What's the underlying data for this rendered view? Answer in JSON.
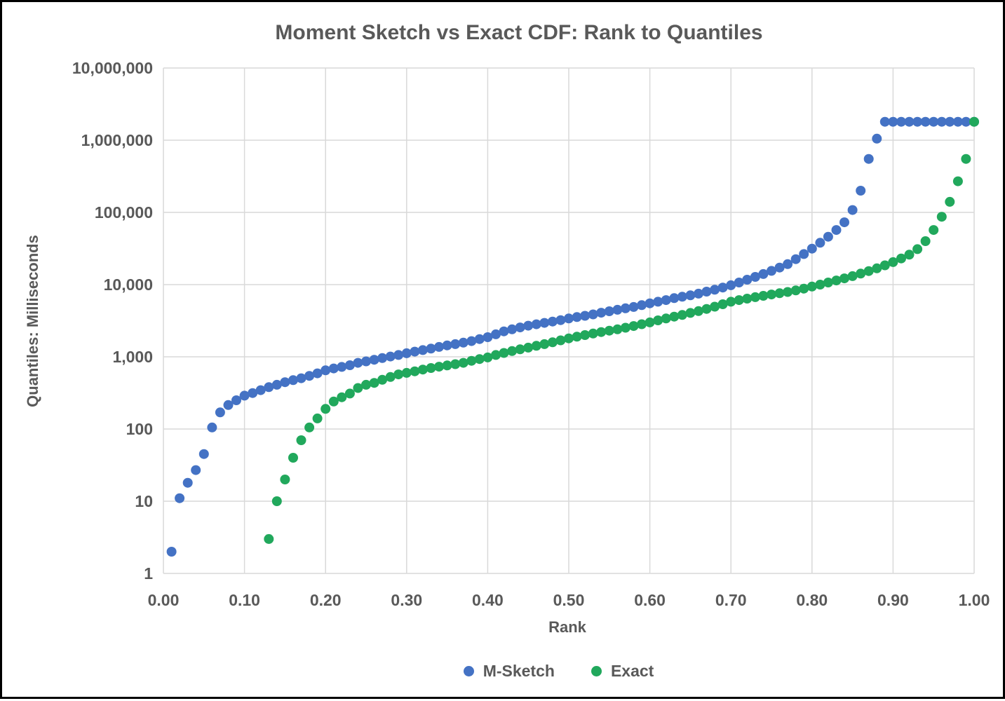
{
  "frame": {
    "border_color": "#000000",
    "background_color": "#FFFFFF"
  },
  "text_color": "#595959",
  "gridline_color": "#D9D9D9",
  "chart_data": {
    "type": "scatter",
    "title": "Moment Sketch vs Exact CDF: Rank to Quantiles",
    "xlabel": "Rank",
    "ylabel": "Quantiles: Milliseconds",
    "grid": true,
    "legend_position": "bottom",
    "x_axis": {
      "min": 0.0,
      "max": 1.0,
      "tick_step": 0.1,
      "tick_labels": [
        "0.00",
        "0.10",
        "0.20",
        "0.30",
        "0.40",
        "0.50",
        "0.60",
        "0.70",
        "0.80",
        "0.90",
        "1.00"
      ]
    },
    "y_axis": {
      "scale": "log10",
      "min": 1,
      "max": 10000000,
      "tick_order": "bottom-to-top",
      "tick_labels": [
        "1",
        "10",
        "100",
        "1,000",
        "10,000",
        "100,000",
        "1,000,000",
        "10,000,000"
      ]
    },
    "series": [
      {
        "name": "M-Sketch",
        "color": "#4472C4",
        "marker_radius": 7,
        "x": [
          0.01,
          0.02,
          0.03,
          0.04,
          0.05,
          0.06,
          0.07,
          0.08,
          0.09,
          0.1,
          0.11,
          0.12,
          0.13,
          0.14,
          0.15,
          0.16,
          0.17,
          0.18,
          0.19,
          0.2,
          0.21,
          0.22,
          0.23,
          0.24,
          0.25,
          0.26,
          0.27,
          0.28,
          0.29,
          0.3,
          0.31,
          0.32,
          0.33,
          0.34,
          0.35,
          0.36,
          0.37,
          0.38,
          0.39,
          0.4,
          0.41,
          0.42,
          0.43,
          0.44,
          0.45,
          0.46,
          0.47,
          0.48,
          0.49,
          0.5,
          0.51,
          0.52,
          0.53,
          0.54,
          0.55,
          0.56,
          0.57,
          0.58,
          0.59,
          0.6,
          0.61,
          0.62,
          0.63,
          0.64,
          0.65,
          0.66,
          0.67,
          0.68,
          0.69,
          0.7,
          0.71,
          0.72,
          0.73,
          0.74,
          0.75,
          0.76,
          0.77,
          0.78,
          0.79,
          0.8,
          0.81,
          0.82,
          0.83,
          0.84,
          0.85,
          0.86,
          0.87,
          0.88,
          0.89,
          0.9,
          0.91,
          0.92,
          0.93,
          0.94,
          0.95,
          0.96,
          0.97,
          0.98,
          0.99,
          1.0
        ],
        "y": [
          2,
          11,
          18,
          27,
          45,
          105,
          170,
          215,
          250,
          290,
          315,
          345,
          380,
          410,
          445,
          475,
          505,
          545,
          590,
          650,
          690,
          725,
          765,
          825,
          865,
          910,
          960,
          1010,
          1060,
          1120,
          1180,
          1240,
          1300,
          1370,
          1440,
          1500,
          1570,
          1650,
          1760,
          1870,
          2050,
          2250,
          2400,
          2550,
          2700,
          2820,
          2950,
          3080,
          3220,
          3400,
          3550,
          3700,
          3870,
          4080,
          4280,
          4480,
          4700,
          4900,
          5200,
          5500,
          5800,
          6100,
          6500,
          6800,
          7100,
          7500,
          8000,
          8500,
          9100,
          9800,
          10700,
          11700,
          12800,
          14000,
          15500,
          17200,
          19200,
          22500,
          26500,
          31500,
          38000,
          46000,
          57000,
          73000,
          108000,
          200000,
          550000,
          1050000,
          1800000,
          1800000,
          1800000,
          1800000,
          1800000,
          1800000,
          1800000,
          1800000,
          1800000,
          1800000,
          1800000,
          1800000
        ]
      },
      {
        "name": "Exact",
        "color": "#21A85C",
        "marker_radius": 7,
        "x": [
          0.13,
          0.14,
          0.15,
          0.16,
          0.17,
          0.18,
          0.19,
          0.2,
          0.21,
          0.22,
          0.23,
          0.24,
          0.25,
          0.26,
          0.27,
          0.28,
          0.29,
          0.3,
          0.31,
          0.32,
          0.33,
          0.34,
          0.35,
          0.36,
          0.37,
          0.38,
          0.39,
          0.4,
          0.41,
          0.42,
          0.43,
          0.44,
          0.45,
          0.46,
          0.47,
          0.48,
          0.49,
          0.5,
          0.51,
          0.52,
          0.53,
          0.54,
          0.55,
          0.56,
          0.57,
          0.58,
          0.59,
          0.6,
          0.61,
          0.62,
          0.63,
          0.64,
          0.65,
          0.66,
          0.67,
          0.68,
          0.69,
          0.7,
          0.71,
          0.72,
          0.73,
          0.74,
          0.75,
          0.76,
          0.77,
          0.78,
          0.79,
          0.8,
          0.81,
          0.82,
          0.83,
          0.84,
          0.85,
          0.86,
          0.87,
          0.88,
          0.89,
          0.9,
          0.91,
          0.92,
          0.93,
          0.94,
          0.95,
          0.96,
          0.97,
          0.98,
          0.99,
          1.0
        ],
        "y": [
          3,
          10,
          20,
          40,
          70,
          105,
          140,
          190,
          240,
          275,
          310,
          370,
          410,
          435,
          480,
          525,
          570,
          600,
          630,
          665,
          700,
          730,
          760,
          790,
          825,
          880,
          930,
          980,
          1060,
          1130,
          1200,
          1270,
          1340,
          1420,
          1500,
          1590,
          1690,
          1800,
          1900,
          2000,
          2100,
          2200,
          2300,
          2400,
          2530,
          2670,
          2830,
          3000,
          3200,
          3400,
          3600,
          3800,
          4050,
          4300,
          4600,
          4950,
          5350,
          5800,
          6100,
          6400,
          6700,
          7000,
          7300,
          7600,
          7900,
          8300,
          8800,
          9400,
          10000,
          10700,
          11400,
          12200,
          13100,
          14200,
          15400,
          16800,
          18500,
          20500,
          23000,
          26000,
          31000,
          40000,
          57000,
          87000,
          140000,
          270000,
          550000,
          1800000
        ]
      }
    ]
  }
}
